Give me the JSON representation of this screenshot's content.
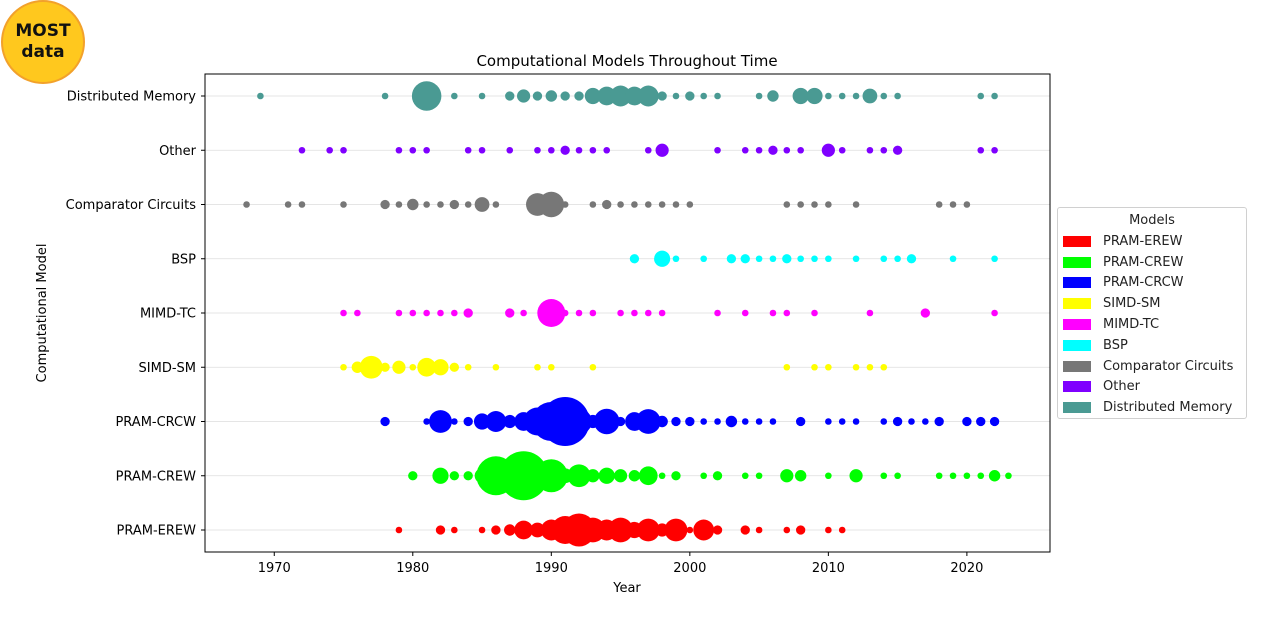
{
  "badge": {
    "line1": "MOST",
    "line2": "data"
  },
  "chart_data": {
    "type": "scatter",
    "title": "Computational Models Throughout Time",
    "xlabel": "Year",
    "ylabel": "Computational Model",
    "xlim": [
      1965,
      2026
    ],
    "xticks": [
      1970,
      1980,
      1990,
      2000,
      2010,
      2020
    ],
    "grid": "horizontal",
    "legend": {
      "title": "Models",
      "placement": "right"
    },
    "categories": [
      "PRAM-EREW",
      "PRAM-CREW",
      "PRAM-CRCW",
      "SIMD-SM",
      "MIMD-TC",
      "BSP",
      "Comparator Circuits",
      "Other",
      "Distributed Memory"
    ],
    "series": [
      {
        "name": "PRAM-EREW",
        "color": "#ff0000",
        "points": [
          [
            1979,
            1
          ],
          [
            1982,
            2
          ],
          [
            1983,
            1
          ],
          [
            1985,
            1
          ],
          [
            1986,
            2
          ],
          [
            1987,
            3
          ],
          [
            1988,
            8
          ],
          [
            1989,
            5
          ],
          [
            1990,
            10
          ],
          [
            1991,
            18
          ],
          [
            1992,
            25
          ],
          [
            1993,
            14
          ],
          [
            1994,
            10
          ],
          [
            1995,
            14
          ],
          [
            1996,
            6
          ],
          [
            1997,
            12
          ],
          [
            1998,
            4
          ],
          [
            1999,
            12
          ],
          [
            2000,
            1
          ],
          [
            2001,
            10
          ],
          [
            2002,
            2
          ],
          [
            2004,
            2
          ],
          [
            2005,
            1
          ],
          [
            2007,
            1
          ],
          [
            2008,
            2
          ],
          [
            2010,
            1
          ],
          [
            2011,
            1
          ]
        ]
      },
      {
        "name": "PRAM-CREW",
        "color": "#00ff00",
        "points": [
          [
            1980,
            2
          ],
          [
            1982,
            6
          ],
          [
            1983,
            2
          ],
          [
            1984,
            2
          ],
          [
            1985,
            5
          ],
          [
            1986,
            35
          ],
          [
            1987,
            12
          ],
          [
            1988,
            55
          ],
          [
            1989,
            20
          ],
          [
            1990,
            25
          ],
          [
            1991,
            5
          ],
          [
            1992,
            12
          ],
          [
            1993,
            4
          ],
          [
            1994,
            6
          ],
          [
            1995,
            4
          ],
          [
            1996,
            3
          ],
          [
            1997,
            8
          ],
          [
            1998,
            1
          ],
          [
            1999,
            2
          ],
          [
            2001,
            1
          ],
          [
            2002,
            2
          ],
          [
            2004,
            1
          ],
          [
            2005,
            1
          ],
          [
            2007,
            4
          ],
          [
            2008,
            3
          ],
          [
            2010,
            1
          ],
          [
            2012,
            4
          ],
          [
            2014,
            1
          ],
          [
            2015,
            1
          ],
          [
            2018,
            1
          ],
          [
            2019,
            1
          ],
          [
            2020,
            1
          ],
          [
            2021,
            1
          ],
          [
            2022,
            3
          ],
          [
            2023,
            1
          ]
        ]
      },
      {
        "name": "PRAM-CRCW",
        "color": "#0000ff",
        "points": [
          [
            1978,
            2
          ],
          [
            1981,
            1
          ],
          [
            1982,
            12
          ],
          [
            1983,
            1
          ],
          [
            1984,
            2
          ],
          [
            1985,
            6
          ],
          [
            1986,
            10
          ],
          [
            1987,
            4
          ],
          [
            1988,
            8
          ],
          [
            1989,
            18
          ],
          [
            1990,
            35
          ],
          [
            1991,
            55
          ],
          [
            1992,
            15
          ],
          [
            1993,
            4
          ],
          [
            1994,
            15
          ],
          [
            1995,
            2
          ],
          [
            1996,
            8
          ],
          [
            1997,
            14
          ],
          [
            1998,
            3
          ],
          [
            1999,
            2
          ],
          [
            2000,
            2
          ],
          [
            2001,
            1
          ],
          [
            2002,
            1
          ],
          [
            2003,
            3
          ],
          [
            2004,
            1
          ],
          [
            2005,
            1
          ],
          [
            2006,
            1
          ],
          [
            2008,
            2
          ],
          [
            2010,
            1
          ],
          [
            2011,
            1
          ],
          [
            2012,
            1
          ],
          [
            2014,
            1
          ],
          [
            2015,
            2
          ],
          [
            2016,
            1
          ],
          [
            2017,
            1
          ],
          [
            2018,
            2
          ],
          [
            2020,
            2
          ],
          [
            2021,
            2
          ],
          [
            2022,
            2
          ]
        ]
      },
      {
        "name": "SIMD-SM",
        "color": "#ffff00",
        "points": [
          [
            1975,
            1
          ],
          [
            1976,
            3
          ],
          [
            1977,
            12
          ],
          [
            1978,
            2
          ],
          [
            1979,
            4
          ],
          [
            1980,
            1
          ],
          [
            1981,
            8
          ],
          [
            1982,
            6
          ],
          [
            1983,
            2
          ],
          [
            1984,
            1
          ],
          [
            1986,
            1
          ],
          [
            1989,
            1
          ],
          [
            1990,
            1
          ],
          [
            1993,
            1
          ],
          [
            2007,
            1
          ],
          [
            2009,
            1
          ],
          [
            2010,
            1
          ],
          [
            2012,
            1
          ],
          [
            2013,
            1
          ],
          [
            2014,
            1
          ]
        ]
      },
      {
        "name": "MIMD-TC",
        "color": "#ff00ff",
        "points": [
          [
            1975,
            1
          ],
          [
            1976,
            1
          ],
          [
            1979,
            1
          ],
          [
            1980,
            1
          ],
          [
            1981,
            1
          ],
          [
            1982,
            1
          ],
          [
            1983,
            1
          ],
          [
            1984,
            2
          ],
          [
            1987,
            2
          ],
          [
            1988,
            1
          ],
          [
            1990,
            18
          ],
          [
            1991,
            1
          ],
          [
            1992,
            1
          ],
          [
            1993,
            1
          ],
          [
            1995,
            1
          ],
          [
            1996,
            1
          ],
          [
            1997,
            1
          ],
          [
            1998,
            1
          ],
          [
            2002,
            1
          ],
          [
            2004,
            1
          ],
          [
            2006,
            1
          ],
          [
            2007,
            1
          ],
          [
            2009,
            1
          ],
          [
            2013,
            1
          ],
          [
            2017,
            2
          ],
          [
            2022,
            1
          ]
        ]
      },
      {
        "name": "BSP",
        "color": "#00ffff",
        "points": [
          [
            1996,
            2
          ],
          [
            1998,
            6
          ],
          [
            1999,
            1
          ],
          [
            2001,
            1
          ],
          [
            2003,
            2
          ],
          [
            2004,
            2
          ],
          [
            2005,
            1
          ],
          [
            2006,
            1
          ],
          [
            2007,
            2
          ],
          [
            2008,
            1
          ],
          [
            2009,
            1
          ],
          [
            2010,
            1
          ],
          [
            2012,
            1
          ],
          [
            2014,
            1
          ],
          [
            2015,
            1
          ],
          [
            2016,
            2
          ],
          [
            2019,
            1
          ],
          [
            2022,
            1
          ]
        ]
      },
      {
        "name": "Comparator Circuits",
        "color": "#777777",
        "points": [
          [
            1968,
            1
          ],
          [
            1971,
            1
          ],
          [
            1972,
            1
          ],
          [
            1975,
            1
          ],
          [
            1978,
            2
          ],
          [
            1979,
            1
          ],
          [
            1980,
            3
          ],
          [
            1981,
            1
          ],
          [
            1982,
            1
          ],
          [
            1983,
            2
          ],
          [
            1984,
            1
          ],
          [
            1985,
            5
          ],
          [
            1986,
            1
          ],
          [
            1989,
            12
          ],
          [
            1990,
            15
          ],
          [
            1991,
            1
          ],
          [
            1993,
            1
          ],
          [
            1994,
            2
          ],
          [
            1995,
            1
          ],
          [
            1996,
            1
          ],
          [
            1997,
            1
          ],
          [
            1998,
            1
          ],
          [
            1999,
            1
          ],
          [
            2000,
            1
          ],
          [
            2007,
            1
          ],
          [
            2008,
            1
          ],
          [
            2009,
            1
          ],
          [
            2010,
            1
          ],
          [
            2012,
            1
          ],
          [
            2018,
            1
          ],
          [
            2019,
            1
          ],
          [
            2020,
            1
          ]
        ]
      },
      {
        "name": "Other",
        "color": "#7f00ff",
        "points": [
          [
            1972,
            1
          ],
          [
            1974,
            1
          ],
          [
            1975,
            1
          ],
          [
            1979,
            1
          ],
          [
            1980,
            1
          ],
          [
            1981,
            1
          ],
          [
            1984,
            1
          ],
          [
            1985,
            1
          ],
          [
            1987,
            1
          ],
          [
            1989,
            1
          ],
          [
            1990,
            1
          ],
          [
            1991,
            2
          ],
          [
            1992,
            1
          ],
          [
            1993,
            1
          ],
          [
            1994,
            1
          ],
          [
            1997,
            1
          ],
          [
            1998,
            4
          ],
          [
            2002,
            1
          ],
          [
            2004,
            1
          ],
          [
            2005,
            1
          ],
          [
            2006,
            2
          ],
          [
            2007,
            1
          ],
          [
            2008,
            1
          ],
          [
            2010,
            4
          ],
          [
            2011,
            1
          ],
          [
            2013,
            1
          ],
          [
            2014,
            1
          ],
          [
            2015,
            2
          ],
          [
            2021,
            1
          ],
          [
            2022,
            1
          ]
        ]
      },
      {
        "name": "Distributed Memory",
        "color": "#4a9a93",
        "points": [
          [
            1969,
            1
          ],
          [
            1978,
            1
          ],
          [
            1981,
            20
          ],
          [
            1983,
            1
          ],
          [
            1985,
            1
          ],
          [
            1987,
            2
          ],
          [
            1988,
            4
          ],
          [
            1989,
            2
          ],
          [
            1990,
            3
          ],
          [
            1991,
            2
          ],
          [
            1992,
            2
          ],
          [
            1993,
            6
          ],
          [
            1994,
            8
          ],
          [
            1995,
            10
          ],
          [
            1996,
            8
          ],
          [
            1997,
            10
          ],
          [
            1998,
            2
          ],
          [
            1999,
            1
          ],
          [
            2000,
            2
          ],
          [
            2001,
            1
          ],
          [
            2002,
            1
          ],
          [
            2005,
            1
          ],
          [
            2006,
            3
          ],
          [
            2008,
            6
          ],
          [
            2009,
            6
          ],
          [
            2010,
            1
          ],
          [
            2011,
            1
          ],
          [
            2012,
            1
          ],
          [
            2013,
            5
          ],
          [
            2014,
            1
          ],
          [
            2015,
            1
          ],
          [
            2021,
            1
          ],
          [
            2022,
            1
          ]
        ]
      }
    ]
  }
}
